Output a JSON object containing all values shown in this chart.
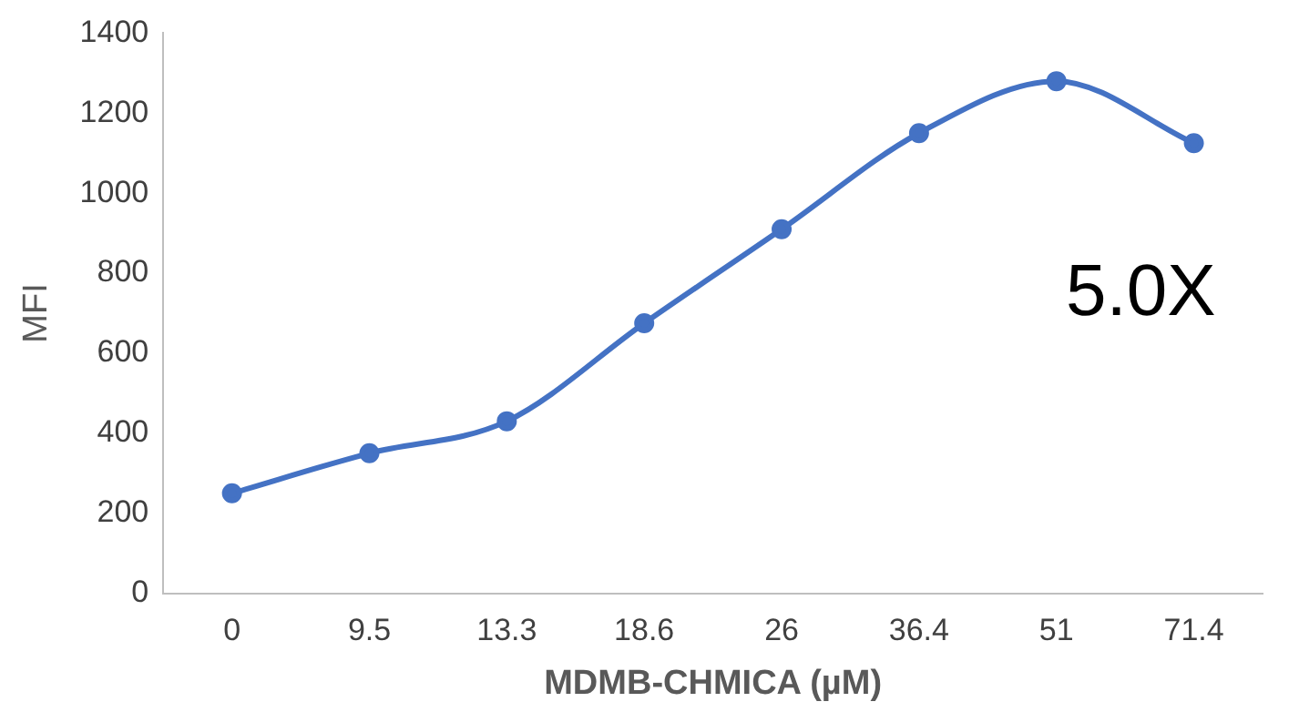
{
  "chart_data": {
    "type": "line",
    "xlabel": "MDMB-CHMICA (µM)",
    "ylabel": "MFI",
    "categories": [
      "0",
      "9.5",
      "13.3",
      "18.6",
      "26",
      "36.4",
      "51",
      "71.4"
    ],
    "series": [
      {
        "color": "#4472c4",
        "values": [
          250,
          350,
          430,
          675,
          910,
          1150,
          1280,
          1125
        ]
      }
    ],
    "ylim": [
      0,
      1400
    ],
    "yticks": [
      0,
      200,
      400,
      600,
      800,
      1000,
      1200,
      1400
    ],
    "grid": false,
    "legend": false,
    "marker": "circle",
    "line_style": "solid",
    "annotations": [
      "5.0X"
    ]
  }
}
